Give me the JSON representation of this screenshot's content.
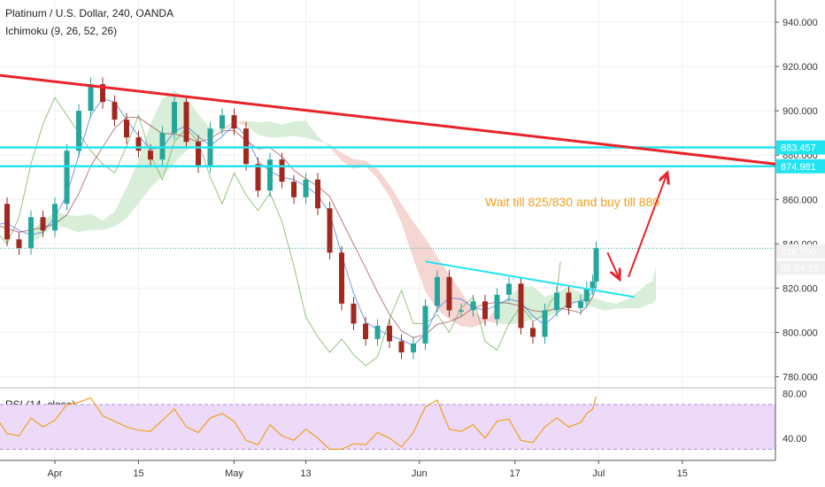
{
  "chart_data": {
    "type": "line",
    "title": "Platinum / U.S. Dollar, 240, OANDA",
    "indicator": "Ichimoku (9, 26, 52, 26)",
    "price_axis": {
      "ticks": [
        "780.000",
        "800.000",
        "820.000",
        "840.000",
        "860.000",
        "880.000",
        "900.000",
        "920.000",
        "940.000"
      ],
      "ylim": [
        775,
        950
      ]
    },
    "rsi_axis": {
      "ticks": [
        "40.00",
        "80.00"
      ],
      "ylim": [
        20,
        85
      ],
      "band": [
        30,
        70
      ]
    },
    "time_axis": {
      "ticks": [
        "Apr",
        "15",
        "May",
        "13",
        "Jun",
        "17",
        "Jul",
        "15"
      ],
      "tick_days": [
        0,
        14,
        30,
        42,
        61,
        77,
        91,
        105
      ]
    },
    "series": [
      {
        "price_days": [
          -14,
          -12,
          -10,
          -8,
          -6,
          -4,
          -2,
          0,
          2,
          4,
          6,
          8,
          10,
          12,
          14,
          16,
          18,
          20,
          22,
          24,
          26,
          28,
          30,
          32,
          34,
          36,
          38,
          40,
          42,
          44,
          46,
          48,
          50,
          52,
          54,
          56,
          58,
          60,
          62,
          64,
          66,
          68,
          70,
          72,
          74,
          76,
          78,
          80,
          82,
          84,
          86,
          88,
          89,
          90,
          90.6
        ],
        "values": [
          840,
          848,
          858,
          842,
          838,
          852,
          846,
          858,
          882,
          900,
          912,
          904,
          896,
          888,
          882,
          878,
          890,
          904,
          886,
          875,
          892,
          898,
          892,
          876,
          864,
          878,
          868,
          861,
          869,
          856,
          836,
          813,
          804,
          797,
          803,
          796,
          791,
          795,
          812,
          825,
          810,
          810,
          814,
          806,
          817,
          822,
          802,
          798,
          810,
          818,
          811,
          814,
          820,
          823,
          838
        ]
      }
    ],
    "rsi": {
      "days": [
        -14,
        -12,
        -10,
        -8,
        -6,
        -4,
        -2,
        0,
        2,
        4,
        6,
        8,
        10,
        12,
        14,
        16,
        18,
        20,
        22,
        24,
        26,
        28,
        30,
        32,
        34,
        36,
        38,
        40,
        42,
        44,
        46,
        48,
        50,
        52,
        54,
        56,
        58,
        60,
        62,
        64,
        66,
        68,
        70,
        72,
        74,
        76,
        78,
        80,
        82,
        84,
        86,
        88,
        89,
        90,
        90.6
      ],
      "values": [
        46,
        55,
        60,
        44,
        42,
        58,
        50,
        56,
        70,
        72,
        76,
        60,
        55,
        50,
        47,
        46,
        56,
        66,
        50,
        45,
        58,
        62,
        55,
        38,
        34,
        52,
        42,
        38,
        48,
        40,
        30,
        30,
        35,
        34,
        45,
        40,
        32,
        45,
        68,
        74,
        48,
        46,
        52,
        40,
        55,
        57,
        38,
        36,
        50,
        58,
        50,
        54,
        62,
        66,
        77
      ]
    },
    "annotations": [
      {
        "text": "Wait till 825/830 and buy till 880"
      },
      {
        "text": "883.457"
      },
      {
        "text": "874.981"
      },
      {
        "text": "836.580"
      },
      {
        "text": "01:04:15"
      }
    ],
    "rsi_label": "RSI (14, close)",
    "colors": {
      "trendline": "#e8232a",
      "support": "#22e4f0",
      "arrow": "#e8232a",
      "note": "#f0a020",
      "up": "#26a69a",
      "down": "#a0281e",
      "rsi_line": "#f0a020",
      "rsi_band": "#ecdaf8",
      "cloud_pos": "#d8eed8",
      "cloud_neg": "#f6d6d2",
      "last_badge": "#26a69a"
    }
  }
}
